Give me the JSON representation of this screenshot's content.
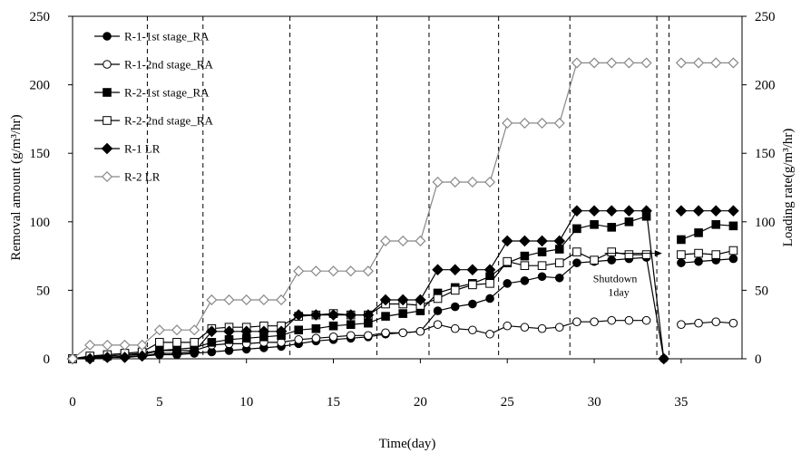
{
  "chart_data": {
    "type": "line",
    "xlabel": "Time(day)",
    "ylabel_left": "Removal amount (g/m³/hr)",
    "ylabel_right": "Loading rate(g/m³/hr)",
    "xlim": [
      0,
      38.5
    ],
    "ylim_left": [
      0,
      250
    ],
    "ylim_right": [
      0,
      250
    ],
    "x_ticks": [
      "0",
      "5",
      "10",
      "15",
      "20",
      "25",
      "30",
      "35"
    ],
    "y_ticks_left": [
      "0",
      "50",
      "100",
      "150",
      "200",
      "250"
    ],
    "y_ticks_right": [
      "0",
      "50",
      "100",
      "150",
      "200",
      "250"
    ],
    "legend_position": "top-left inside plot",
    "stage_dividers_x": [
      4.3,
      7.5,
      12.5,
      17.5,
      20.5,
      24.5,
      28.6,
      33.6,
      34.3
    ],
    "gap": [
      34.3,
      35.1
    ],
    "annotation": {
      "line1": "Shutdown",
      "line2": "1day",
      "arrow_to": [
        33.9,
        77
      ]
    },
    "series": [
      {
        "name": "R-1-1st stage_RA",
        "marker": "circle-filled",
        "points": [
          [
            0,
            0
          ],
          [
            1,
            1
          ],
          [
            2,
            1
          ],
          [
            3,
            2
          ],
          [
            4,
            2
          ],
          [
            5,
            3
          ],
          [
            6,
            3
          ],
          [
            7,
            4
          ],
          [
            8,
            5
          ],
          [
            9,
            6
          ],
          [
            10,
            7
          ],
          [
            11,
            8
          ],
          [
            12,
            9
          ],
          [
            13,
            11
          ],
          [
            14,
            13
          ],
          [
            15,
            14
          ],
          [
            16,
            15
          ],
          [
            17,
            16
          ],
          [
            18,
            18
          ],
          [
            19,
            19
          ],
          [
            20,
            20
          ],
          [
            21,
            35
          ],
          [
            22,
            38
          ],
          [
            23,
            40
          ],
          [
            24,
            44
          ],
          [
            25,
            55
          ],
          [
            26,
            57
          ],
          [
            27,
            60
          ],
          [
            28,
            59
          ],
          [
            29,
            70
          ],
          [
            30,
            71
          ],
          [
            31,
            72
          ],
          [
            32,
            73
          ],
          [
            33,
            74
          ],
          [
            34,
            0
          ],
          [
            35,
            70
          ],
          [
            36,
            71
          ],
          [
            37,
            72
          ],
          [
            38,
            73
          ]
        ]
      },
      {
        "name": "R-1-2nd stage_RA",
        "marker": "circle-open",
        "points": [
          [
            0,
            0
          ],
          [
            1,
            2
          ],
          [
            2,
            2
          ],
          [
            3,
            3
          ],
          [
            4,
            3
          ],
          [
            5,
            6
          ],
          [
            6,
            6
          ],
          [
            7,
            6
          ],
          [
            8,
            10
          ],
          [
            9,
            11
          ],
          [
            10,
            11
          ],
          [
            11,
            12
          ],
          [
            12,
            12
          ],
          [
            13,
            14
          ],
          [
            14,
            15
          ],
          [
            15,
            16
          ],
          [
            16,
            17
          ],
          [
            17,
            17
          ],
          [
            18,
            19
          ],
          [
            19,
            19
          ],
          [
            20,
            20
          ],
          [
            21,
            25
          ],
          [
            22,
            22
          ],
          [
            23,
            21
          ],
          [
            24,
            18
          ],
          [
            25,
            24
          ],
          [
            26,
            23
          ],
          [
            27,
            22
          ],
          [
            28,
            23
          ],
          [
            29,
            27
          ],
          [
            30,
            27
          ],
          [
            31,
            28
          ],
          [
            32,
            28
          ],
          [
            33,
            28
          ],
          [
            35,
            25
          ],
          [
            36,
            26
          ],
          [
            37,
            27
          ],
          [
            38,
            26
          ]
        ]
      },
      {
        "name": "R-2-1st stage_RA",
        "marker": "square-filled",
        "points": [
          [
            0,
            0
          ],
          [
            1,
            1
          ],
          [
            2,
            2
          ],
          [
            3,
            3
          ],
          [
            4,
            4
          ],
          [
            5,
            6
          ],
          [
            6,
            7
          ],
          [
            7,
            8
          ],
          [
            8,
            12
          ],
          [
            9,
            14
          ],
          [
            10,
            15
          ],
          [
            11,
            16
          ],
          [
            12,
            17
          ],
          [
            13,
            21
          ],
          [
            14,
            22
          ],
          [
            15,
            24
          ],
          [
            16,
            25
          ],
          [
            17,
            26
          ],
          [
            18,
            31
          ],
          [
            19,
            33
          ],
          [
            20,
            35
          ],
          [
            21,
            48
          ],
          [
            22,
            52
          ],
          [
            23,
            55
          ],
          [
            24,
            60
          ],
          [
            25,
            70
          ],
          [
            26,
            75
          ],
          [
            27,
            78
          ],
          [
            28,
            80
          ],
          [
            29,
            95
          ],
          [
            30,
            98
          ],
          [
            31,
            96
          ],
          [
            32,
            100
          ],
          [
            33,
            104
          ],
          [
            35,
            87
          ],
          [
            36,
            92
          ],
          [
            37,
            98
          ],
          [
            38,
            97
          ]
        ]
      },
      {
        "name": "R-2-2nd stage_RA",
        "marker": "square-open",
        "points": [
          [
            0,
            0
          ],
          [
            1,
            2
          ],
          [
            2,
            3
          ],
          [
            3,
            4
          ],
          [
            4,
            5
          ],
          [
            5,
            12
          ],
          [
            6,
            12
          ],
          [
            7,
            12
          ],
          [
            8,
            22
          ],
          [
            9,
            23
          ],
          [
            10,
            23
          ],
          [
            11,
            24
          ],
          [
            12,
            24
          ],
          [
            13,
            31
          ],
          [
            14,
            32
          ],
          [
            15,
            33
          ],
          [
            16,
            32
          ],
          [
            17,
            32
          ],
          [
            18,
            40
          ],
          [
            19,
            40
          ],
          [
            20,
            39
          ],
          [
            21,
            44
          ],
          [
            22,
            50
          ],
          [
            23,
            54
          ],
          [
            24,
            55
          ],
          [
            25,
            71
          ],
          [
            26,
            68
          ],
          [
            27,
            68
          ],
          [
            28,
            70
          ],
          [
            29,
            78
          ],
          [
            30,
            72
          ],
          [
            31,
            78
          ],
          [
            32,
            76
          ],
          [
            33,
            76
          ],
          [
            35,
            76
          ],
          [
            36,
            77
          ],
          [
            37,
            76
          ],
          [
            38,
            79
          ]
        ]
      },
      {
        "name": "R-1 LR",
        "marker": "diamond-filled",
        "points": [
          [
            0,
            0
          ],
          [
            1,
            0
          ],
          [
            2,
            1
          ],
          [
            3,
            1
          ],
          [
            4,
            2
          ],
          [
            5,
            4
          ],
          [
            6,
            4
          ],
          [
            7,
            5
          ],
          [
            8,
            20
          ],
          [
            9,
            20
          ],
          [
            10,
            20
          ],
          [
            11,
            20
          ],
          [
            12,
            20
          ],
          [
            13,
            32
          ],
          [
            14,
            32
          ],
          [
            15,
            32
          ],
          [
            16,
            32
          ],
          [
            17,
            32
          ],
          [
            18,
            43
          ],
          [
            19,
            43
          ],
          [
            20,
            43
          ],
          [
            21,
            65
          ],
          [
            22,
            65
          ],
          [
            23,
            65
          ],
          [
            24,
            65
          ],
          [
            25,
            86
          ],
          [
            26,
            86
          ],
          [
            27,
            86
          ],
          [
            28,
            86
          ],
          [
            29,
            108
          ],
          [
            30,
            108
          ],
          [
            31,
            108
          ],
          [
            32,
            108
          ],
          [
            33,
            108
          ],
          [
            34,
            0
          ],
          [
            35,
            108
          ],
          [
            36,
            108
          ],
          [
            37,
            108
          ],
          [
            38,
            108
          ]
        ]
      },
      {
        "name": "R-2 LR",
        "marker": "diamond-open",
        "points": [
          [
            0,
            0
          ],
          [
            1,
            10
          ],
          [
            2,
            10
          ],
          [
            3,
            10
          ],
          [
            4,
            10
          ],
          [
            5,
            21
          ],
          [
            6,
            21
          ],
          [
            7,
            21
          ],
          [
            8,
            43
          ],
          [
            9,
            43
          ],
          [
            10,
            43
          ],
          [
            11,
            43
          ],
          [
            12,
            43
          ],
          [
            13,
            64
          ],
          [
            14,
            64
          ],
          [
            15,
            64
          ],
          [
            16,
            64
          ],
          [
            17,
            64
          ],
          [
            18,
            86
          ],
          [
            19,
            86
          ],
          [
            20,
            86
          ],
          [
            21,
            129
          ],
          [
            22,
            129
          ],
          [
            23,
            129
          ],
          [
            24,
            129
          ],
          [
            25,
            172
          ],
          [
            26,
            172
          ],
          [
            27,
            172
          ],
          [
            28,
            172
          ],
          [
            29,
            216
          ],
          [
            30,
            216
          ],
          [
            31,
            216
          ],
          [
            32,
            216
          ],
          [
            33,
            216
          ],
          [
            35,
            216
          ],
          [
            36,
            216
          ],
          [
            37,
            216
          ],
          [
            38,
            216
          ]
        ]
      }
    ]
  }
}
